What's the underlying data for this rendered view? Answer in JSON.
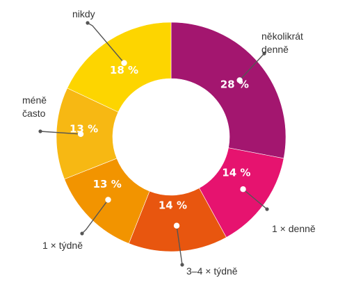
{
  "chart_data": {
    "type": "pie",
    "donut": true,
    "title": "",
    "categories": [
      "několikrát denně",
      "1 × denně",
      "3–4 × týdně",
      "1 × týdně",
      "méně často",
      "nikdy"
    ],
    "values": [
      28,
      14,
      14,
      13,
      13,
      18
    ],
    "value_labels": [
      "28 %",
      "14 %",
      "14 %",
      "13 %",
      "13 %",
      "18 %"
    ],
    "label_lines": [
      [
        "několikrát",
        "denně"
      ],
      [
        "1 × denně"
      ],
      [
        "3–4 × týdně"
      ],
      [
        "1 × týdně"
      ],
      [
        "méně",
        "často"
      ],
      [
        "nikdy"
      ]
    ],
    "colors": [
      "#a3166f",
      "#e6136f",
      "#e8560f",
      "#f29400",
      "#f7b813",
      "#fdd500"
    ],
    "legend": "none",
    "start": "top, clockwise"
  }
}
